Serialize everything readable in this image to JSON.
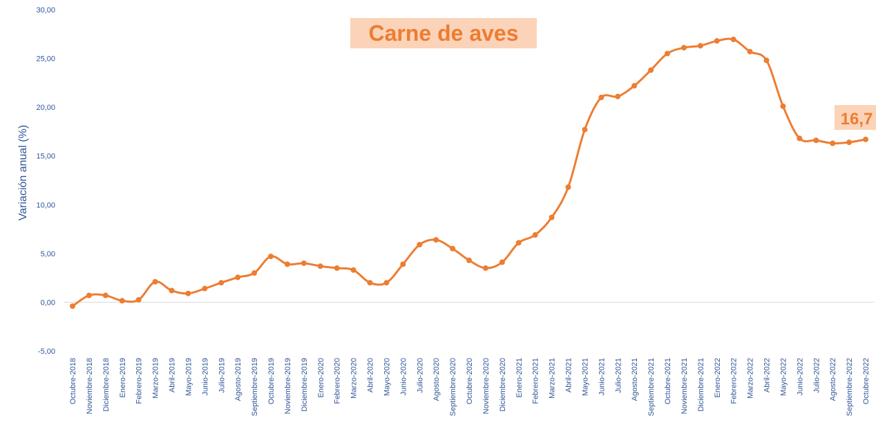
{
  "chart_data": {
    "type": "line",
    "title": "Carne de aves",
    "y_label": "Variación anual (%)",
    "annotation": "16,7",
    "categories": [
      "Octubre-2018",
      "Noviembre-2018",
      "Diciembre-2018",
      "Enero-2019",
      "Febrero-2019",
      "Marzo-2019",
      "Abril-2019",
      "Mayo-2019",
      "Junio-2019",
      "Julio-2019",
      "Agosto-2019",
      "Septiembre-2019",
      "Octubre-2019",
      "Noviembre-2019",
      "Diciembre-2019",
      "Enero-2020",
      "Febrero-2020",
      "Marzo-2020",
      "Abril-2020",
      "Mayo-2020",
      "Junio-2020",
      "Julio-2020",
      "Agosto-2020",
      "Septiembre-2020",
      "Octubre-2020",
      "Noviembre-2020",
      "Diciembre-2020",
      "Enero-2021",
      "Febrero-2021",
      "Marzo-2021",
      "Abril-2021",
      "Mayo-2021",
      "Junio-2021",
      "Julio-2021",
      "Agosto-2021",
      "Septiembre-2021",
      "Octubre-2021",
      "Noviembre-2021",
      "Diciembre-2021",
      "Enero-2022",
      "Febrero-2022",
      "Marzo-2022",
      "Abril-2022",
      "Mayo-2022",
      "Junio-2022",
      "Julio-2022",
      "Agosto-2022",
      "Septiembre-2022",
      "Octubre-2022"
    ],
    "values": [
      -0.4,
      0.7,
      0.7,
      0.15,
      0.25,
      2.1,
      1.2,
      0.9,
      1.4,
      2.0,
      2.55,
      3.0,
      4.7,
      3.9,
      4.0,
      3.7,
      3.5,
      3.3,
      2.0,
      2.0,
      3.9,
      5.9,
      6.4,
      5.5,
      4.3,
      3.5,
      4.1,
      6.1,
      6.9,
      8.7,
      11.8,
      17.7,
      21.0,
      21.1,
      22.2,
      23.8,
      25.5,
      26.1,
      26.3,
      26.8,
      26.95,
      25.7,
      24.8,
      20.1,
      16.8,
      16.6,
      16.3,
      16.4,
      16.7
    ],
    "color": "#ed7d31",
    "ylim": [
      -5,
      30
    ],
    "yticks": [
      {
        "value": -5,
        "label": "-5,00"
      },
      {
        "value": 0,
        "label": "0,00"
      },
      {
        "value": 5,
        "label": "5,00"
      },
      {
        "value": 10,
        "label": "10,00"
      },
      {
        "value": 15,
        "label": "15,00"
      },
      {
        "value": 20,
        "label": "20,00"
      },
      {
        "value": 25,
        "label": "25,00"
      },
      {
        "value": 30,
        "label": "30,00"
      }
    ],
    "grid": false
  }
}
